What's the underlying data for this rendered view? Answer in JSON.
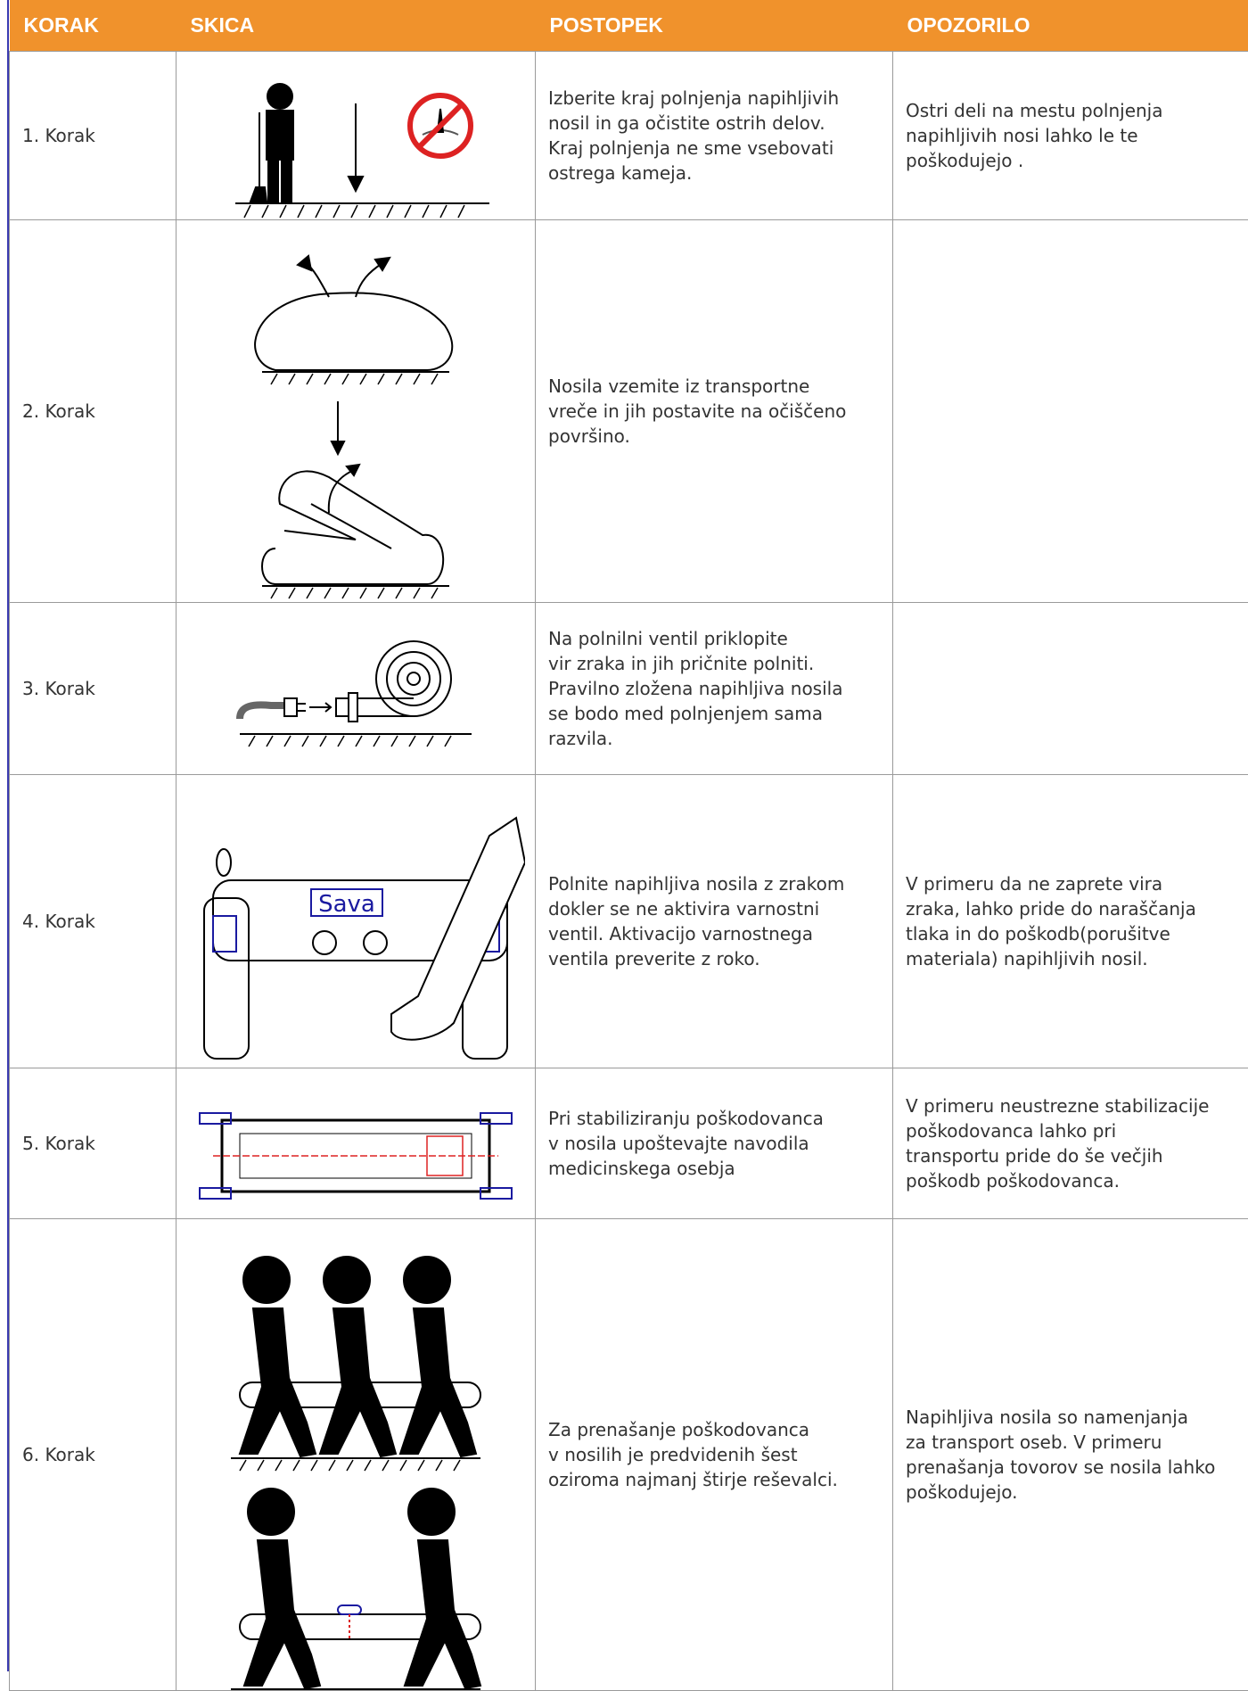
{
  "table": {
    "header": [
      "KORAK",
      "SKICA",
      "POSTOPEK",
      "OPOZORILO"
    ],
    "rows": [
      {
        "step": "1. Korak",
        "procedure": "Izberite kraj polnjenja napihljivih\nnosil in ga očistite ostrih delov.\nKraj polnjenja ne sme vsebovati\nostrega kameja.",
        "warning": "Ostri deli na mestu polnjenja\nnapihljivih nosi lahko le te\npoškodujejo ."
      },
      {
        "step": "2. Korak",
        "procedure": "Nosila vzemite iz transportne\nvreče in jih postavite na očiščeno\npovršino."
      },
      {
        "step": "3. Korak",
        "procedure": "Na polnilni ventil priklopite\nvir zraka in jih pričnite polniti.\nPravilno zložena napihljiva nosila\nse bodo med polnjenjem sama\nrazvila."
      },
      {
        "step": "4. Korak",
        "sketch_text": "Sava",
        "procedure": "Polnite napihljiva nosila z zrakom\ndokler se ne aktivira varnostni\nventil. Aktivacijo varnostnega\nventila preverite z roko.",
        "warning": "V primeru da ne zaprete vira\nzraka, lahko pride do naraščanja\ntlaka in do poškodb(porušitve\nmateriala) napihljivih nosil."
      },
      {
        "step": "5. Korak",
        "procedure": "Pri stabiliziranju poškodovanca\nv nosila upoštevajte navodila\nmedicinskega osebja",
        "warning": "V primeru neustrezne stabilizacije\npoškodovanca lahko  pri\ntransportu pride do še večjih\npoškodb poškodovanca."
      },
      {
        "step": "6. Korak",
        "procedure": "Za prenašanje poškodovanca\nv nosilih je predvidenih šest\noziroma najmanj štirje reševalci.",
        "warning": "Napihljiva nosila so namenjanja\nza transport oseb. V primeru\nprenašanja tovorov se nosila lahko\npoškodujejo."
      }
    ]
  }
}
